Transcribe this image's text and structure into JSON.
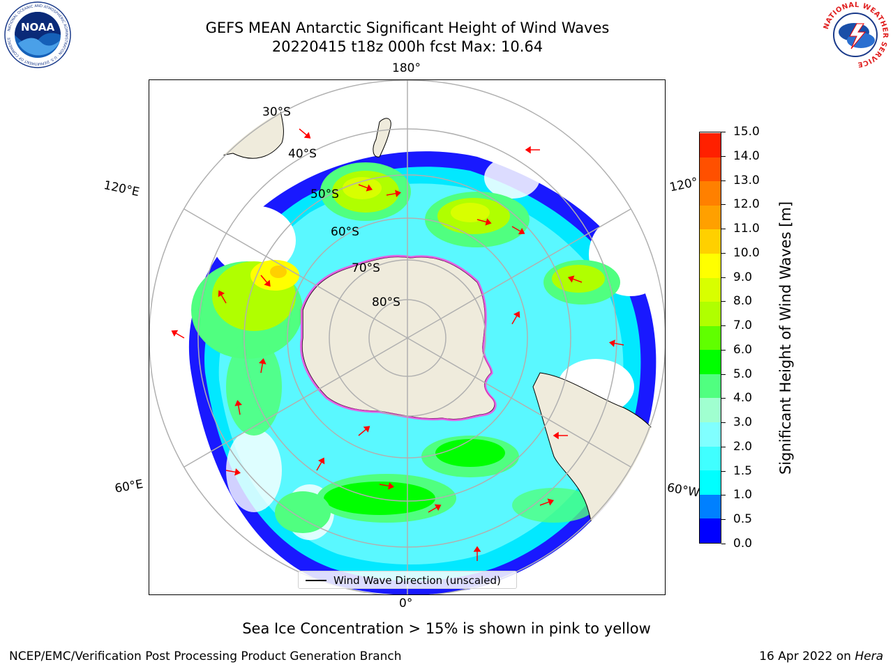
{
  "header": {
    "title": "GEFS MEAN Antarctic Significant Height of Wind Waves",
    "subtitle": "20220415 t18z 000h fcst   Max: 10.64"
  },
  "logos": {
    "left": {
      "name": "noaa-logo",
      "text": "NOAA",
      "ring_text": "NATIONAL OCEANIC AND ATMOSPHERIC ADMINISTRATION · U.S. DEPARTMENT OF COMMERCE"
    },
    "right": {
      "name": "national-weather-service-logo",
      "ring_text": "NATIONAL WEATHER SERVICE"
    }
  },
  "map": {
    "projection": "south-polar-stereographic",
    "longitude_labels": {
      "top": "180°",
      "bottom": "0°",
      "upper_left": "120°E",
      "lower_left": "60°E",
      "upper_right": "120°",
      "lower_right": "60°W"
    },
    "latitude_labels": [
      "30°S",
      "40°S",
      "50°S",
      "60°S",
      "70°S",
      "80°S"
    ],
    "colors": {
      "land": "#efebdc",
      "coast": "#000000",
      "grid": "#b0b0b0",
      "arrow": "#ff0000",
      "ice_edge": "#ff44dd"
    }
  },
  "colorbar": {
    "label": "Significant Height of Wind Waves [m]",
    "ticks": [
      "0.0",
      "0.5",
      "1.0",
      "1.5",
      "2.0",
      "3.0",
      "4.0",
      "5.0",
      "6.0",
      "7.0",
      "8.0",
      "9.0",
      "10.0",
      "11.0",
      "12.0",
      "13.0",
      "14.0",
      "15.0"
    ],
    "colors": [
      "#0000ff",
      "#0080ff",
      "#00ffff",
      "#40ffff",
      "#80ffff",
      "#a0ffd0",
      "#50ff80",
      "#00ff00",
      "#60ff00",
      "#b0ff00",
      "#d8ff00",
      "#ffff00",
      "#ffd000",
      "#ffa000",
      "#ff8000",
      "#ff5000",
      "#ff2000"
    ]
  },
  "legend": {
    "label": "Wind Wave Direction (unscaled)"
  },
  "footer": {
    "note": "Sea Ice Concentration > 15% is shown in pink to yellow",
    "credit": "NCEP/EMC/Verification Post Processing Product Generation Branch",
    "date_prefix": "16 Apr 2022 on",
    "machine": "Hera"
  }
}
